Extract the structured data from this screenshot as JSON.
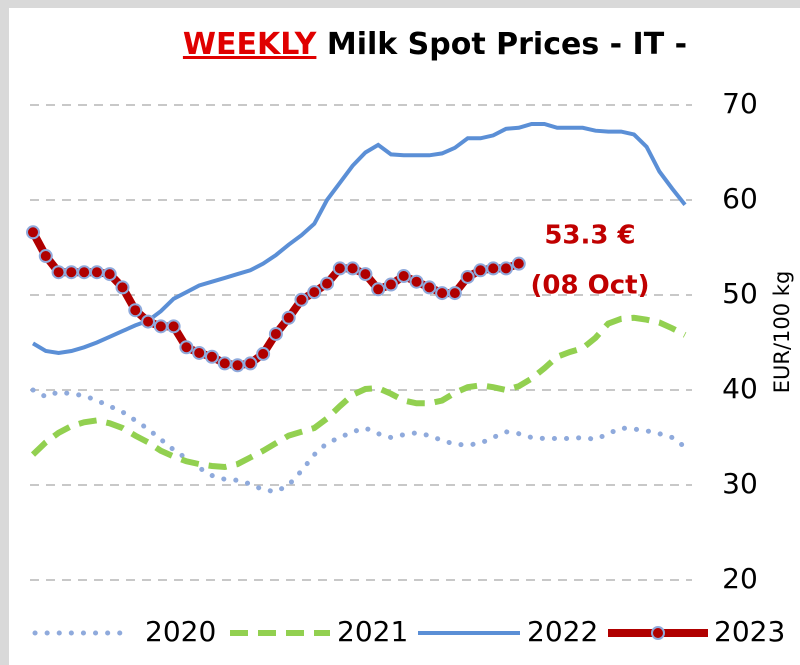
{
  "chart_data": {
    "type": "line",
    "title_highlight": "WEEKLY",
    "title_highlight_color": "#e00000",
    "title": "Milk Spot Prices - IT -",
    "y_label": "EUR/100 kg",
    "y_axis_side": "right",
    "annotation": [
      "53.3 €",
      "(08 Oct)"
    ],
    "annotation_color": "#c00000",
    "categories": [
      null,
      null,
      null,
      null,
      null,
      null,
      null,
      null,
      null,
      null,
      null,
      null,
      null,
      null,
      null,
      null,
      null,
      null,
      null,
      null,
      null,
      null,
      null,
      null,
      null,
      null,
      null,
      null,
      null,
      null,
      null,
      null,
      null,
      null,
      null,
      null,
      null,
      null,
      null,
      null,
      null,
      null,
      null,
      null,
      null,
      null,
      null,
      null,
      null,
      null,
      null,
      null
    ],
    "ylim": [
      20,
      70
    ],
    "yticks": [
      20,
      30,
      40,
      50,
      60,
      70
    ],
    "grid": true,
    "series": [
      {
        "name": "2020",
        "color": "#8faadc",
        "line_style": "dotted",
        "values": [
          40.0,
          39.3,
          39.8,
          39.6,
          39.4,
          38.9,
          38.3,
          37.7,
          36.8,
          35.9,
          34.8,
          33.7,
          32.8,
          31.8,
          31.0,
          30.6,
          30.5,
          30.1,
          29.5,
          29.3,
          30.0,
          31.5,
          33.2,
          34.4,
          35.0,
          35.6,
          36.0,
          35.4,
          35.0,
          35.3,
          35.5,
          35.2,
          34.7,
          34.3,
          34.2,
          34.4,
          35.0,
          35.6,
          35.4,
          35.0,
          34.9,
          34.9,
          34.9,
          35.0,
          34.8,
          35.4,
          36.0,
          35.9,
          35.7,
          35.4,
          35.0,
          34.0
        ]
      },
      {
        "name": "2021",
        "color": "#92d050",
        "line_style": "dashed",
        "values": [
          33.2,
          34.5,
          35.5,
          36.2,
          36.6,
          36.8,
          36.5,
          36.0,
          35.2,
          34.5,
          33.6,
          33.0,
          32.5,
          32.2,
          32.0,
          31.9,
          32.2,
          32.9,
          33.6,
          34.4,
          35.2,
          35.6,
          36.0,
          37.0,
          38.3,
          39.5,
          40.1,
          40.2,
          39.6,
          38.9,
          38.6,
          38.6,
          38.9,
          39.7,
          40.3,
          40.5,
          40.3,
          40.0,
          40.4,
          41.2,
          42.3,
          43.5,
          44.0,
          44.4,
          45.5,
          47.0,
          47.5,
          47.6,
          47.4,
          47.1,
          46.5,
          45.8
        ]
      },
      {
        "name": "2022",
        "color": "#5b8fd6",
        "line_style": "solid",
        "values": [
          44.9,
          44.1,
          43.9,
          44.1,
          44.5,
          45.0,
          45.6,
          46.2,
          46.8,
          47.3,
          48.3,
          49.6,
          50.3,
          51.0,
          51.4,
          51.8,
          52.2,
          52.6,
          53.3,
          54.2,
          55.3,
          56.3,
          57.5,
          60.0,
          61.8,
          63.6,
          65.0,
          65.8,
          64.8,
          64.7,
          64.7,
          64.7,
          64.9,
          65.5,
          66.5,
          66.5,
          66.8,
          67.5,
          67.6,
          68.0,
          68.0,
          67.6,
          67.6,
          67.6,
          67.3,
          67.2,
          67.2,
          66.9,
          65.6,
          63.0,
          61.2,
          59.5
        ]
      },
      {
        "name": "2023",
        "color": "#b00000",
        "line_style": "thick",
        "markers": true,
        "marker_edge": "#8faadc",
        "values": [
          56.6,
          54.1,
          52.4,
          52.4,
          52.4,
          52.4,
          52.2,
          50.8,
          48.4,
          47.2,
          46.7,
          46.7,
          44.5,
          43.9,
          43.5,
          42.8,
          42.6,
          42.8,
          43.8,
          45.9,
          47.6,
          49.5,
          50.3,
          51.2,
          52.8,
          52.8,
          52.2,
          50.6,
          51.1,
          52.0,
          51.4,
          50.8,
          50.2,
          50.2,
          51.9,
          52.6,
          52.8,
          52.8,
          53.3,
          null,
          null,
          null,
          null,
          null,
          null,
          null,
          null,
          null,
          null,
          null,
          null,
          null
        ]
      }
    ]
  }
}
